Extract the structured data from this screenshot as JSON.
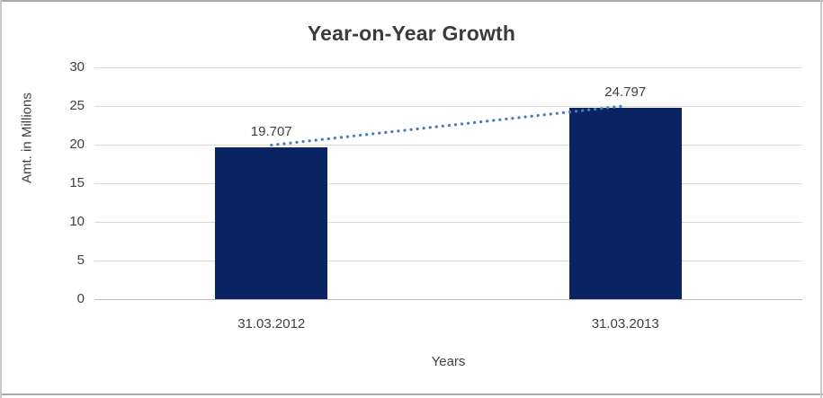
{
  "page": {
    "background": "#ffffff",
    "border_horizontal_color": "#a9a9a9",
    "border_vertical_color": "#c9c9c9"
  },
  "chart_data": {
    "type": "bar",
    "title": "Year-on-Year Growth",
    "xlabel": "Years",
    "ylabel": "Amt. in Millions",
    "categories": [
      "31.03.2012",
      "31.03.2013"
    ],
    "values": [
      19.707,
      24.797
    ],
    "value_labels": [
      "19.707",
      "24.797"
    ],
    "ylim": [
      0,
      30
    ],
    "yticks": [
      0,
      5,
      10,
      15,
      20,
      25,
      30
    ],
    "grid": true,
    "legend": false,
    "bar_color": "#0a2463",
    "trendline": {
      "style": "dotted",
      "color": "#4a7ebb"
    },
    "gridline_color": "#d9d9d9",
    "axis_line_color": "#bfbfbf",
    "text_color": "#404040",
    "title_color": "#3b3b3b"
  }
}
